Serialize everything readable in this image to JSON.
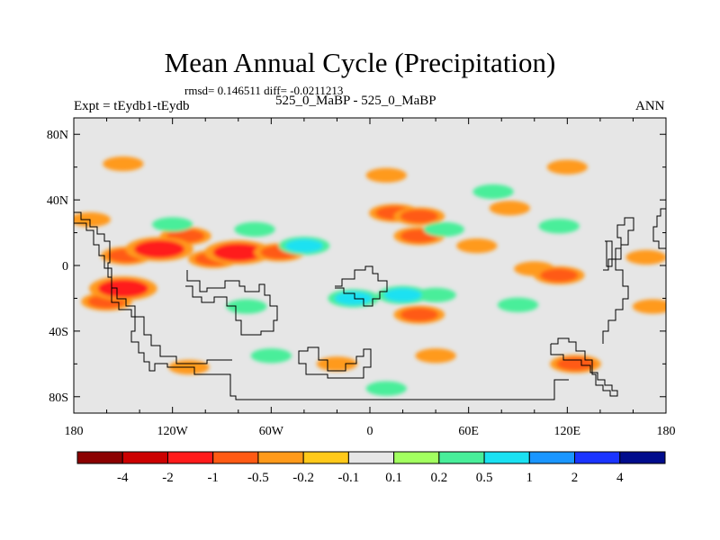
{
  "chart_data": {
    "type": "heatmap",
    "title": "Mean Annual Cycle (Precipitation)",
    "stats": "rmsd= 0.146511 diff= -0.0211213",
    "left_label": "Expt = tEydb1-tEydb",
    "center_label": "525_0_MaBP - 525_0_MaBP",
    "right_label": "ANN",
    "x_ticks": [
      "180",
      "120W",
      "60W",
      "0",
      "60E",
      "120E",
      "180"
    ],
    "x_range": [
      -180,
      180
    ],
    "y_ticks": [
      "80N",
      "40N",
      "0",
      "40S",
      "80S"
    ],
    "y_range": [
      -90,
      90
    ],
    "colorbar": {
      "labels": [
        "-4",
        "-2",
        "-1",
        "-0.5",
        "-0.2",
        "-0.1",
        "0.1",
        "0.2",
        "0.5",
        "1",
        "2",
        "4"
      ],
      "colors": [
        "#8b0000",
        "#cc0000",
        "#ff1a1a",
        "#ff5a14",
        "#ff9a1a",
        "#ffc91a",
        "#e6e6e6",
        "#a2ff60",
        "#48ee9a",
        "#1ae1f2",
        "#1a96ff",
        "#1a34ff",
        "#000c8c"
      ],
      "tick_lons_note": "colorbar labels sit between adjacent color boxes"
    },
    "field_note": "Difference field of annual mean precipitation; mostly near zero (light gray) with scattered positive/negative anomaly patches, strongest in tropics.",
    "anomalies": [
      {
        "lon": -170,
        "lat": 28,
        "level": -0.2
      },
      {
        "lon": -148,
        "lat": 6,
        "level": -0.5
      },
      {
        "lon": -112,
        "lat": 18,
        "level": -0.5
      },
      {
        "lon": -128,
        "lat": 10,
        "level": -1
      },
      {
        "lon": -95,
        "lat": 4,
        "level": -0.5
      },
      {
        "lon": -80,
        "lat": 8,
        "level": -1
      },
      {
        "lon": -55,
        "lat": 8,
        "level": -0.5
      },
      {
        "lon": -160,
        "lat": -22,
        "level": -0.5
      },
      {
        "lon": -150,
        "lat": -14,
        "level": -1
      },
      {
        "lon": -120,
        "lat": 25,
        "level": 0.2
      },
      {
        "lon": -70,
        "lat": 22,
        "level": 0.2
      },
      {
        "lon": -40,
        "lat": 12,
        "level": 0.5
      },
      {
        "lon": -10,
        "lat": -20,
        "level": 0.5
      },
      {
        "lon": -75,
        "lat": -25,
        "level": 0.2
      },
      {
        "lon": 15,
        "lat": 32,
        "level": -0.5
      },
      {
        "lon": 30,
        "lat": 30,
        "level": -0.5
      },
      {
        "lon": 30,
        "lat": 18,
        "level": -0.5
      },
      {
        "lon": 45,
        "lat": 22,
        "level": 0.2
      },
      {
        "lon": 65,
        "lat": 12,
        "level": -0.2
      },
      {
        "lon": 85,
        "lat": 35,
        "level": -0.2
      },
      {
        "lon": 75,
        "lat": 45,
        "level": 0.2
      },
      {
        "lon": 115,
        "lat": 24,
        "level": 0.2
      },
      {
        "lon": 100,
        "lat": -2,
        "level": -0.2
      },
      {
        "lon": 115,
        "lat": -6,
        "level": -0.5
      },
      {
        "lon": 30,
        "lat": -30,
        "level": -0.5
      },
      {
        "lon": 40,
        "lat": -18,
        "level": 0.2
      },
      {
        "lon": 20,
        "lat": -18,
        "level": 0.5
      },
      {
        "lon": 90,
        "lat": -24,
        "level": 0.2
      },
      {
        "lon": 168,
        "lat": 5,
        "level": -0.2
      },
      {
        "lon": 172,
        "lat": -25,
        "level": -0.2
      },
      {
        "lon": -150,
        "lat": 62,
        "level": -0.2
      },
      {
        "lon": 10,
        "lat": 55,
        "level": -0.2
      },
      {
        "lon": 120,
        "lat": 60,
        "level": -0.2
      },
      {
        "lon": 40,
        "lat": -55,
        "level": -0.2
      },
      {
        "lon": 125,
        "lat": -60,
        "level": -0.5
      },
      {
        "lon": -20,
        "lat": -60,
        "level": -0.2
      },
      {
        "lon": -60,
        "lat": -55,
        "level": 0.2
      },
      {
        "lon": -110,
        "lat": -62,
        "level": -0.2
      },
      {
        "lon": 10,
        "lat": -75,
        "level": 0.2
      }
    ]
  }
}
